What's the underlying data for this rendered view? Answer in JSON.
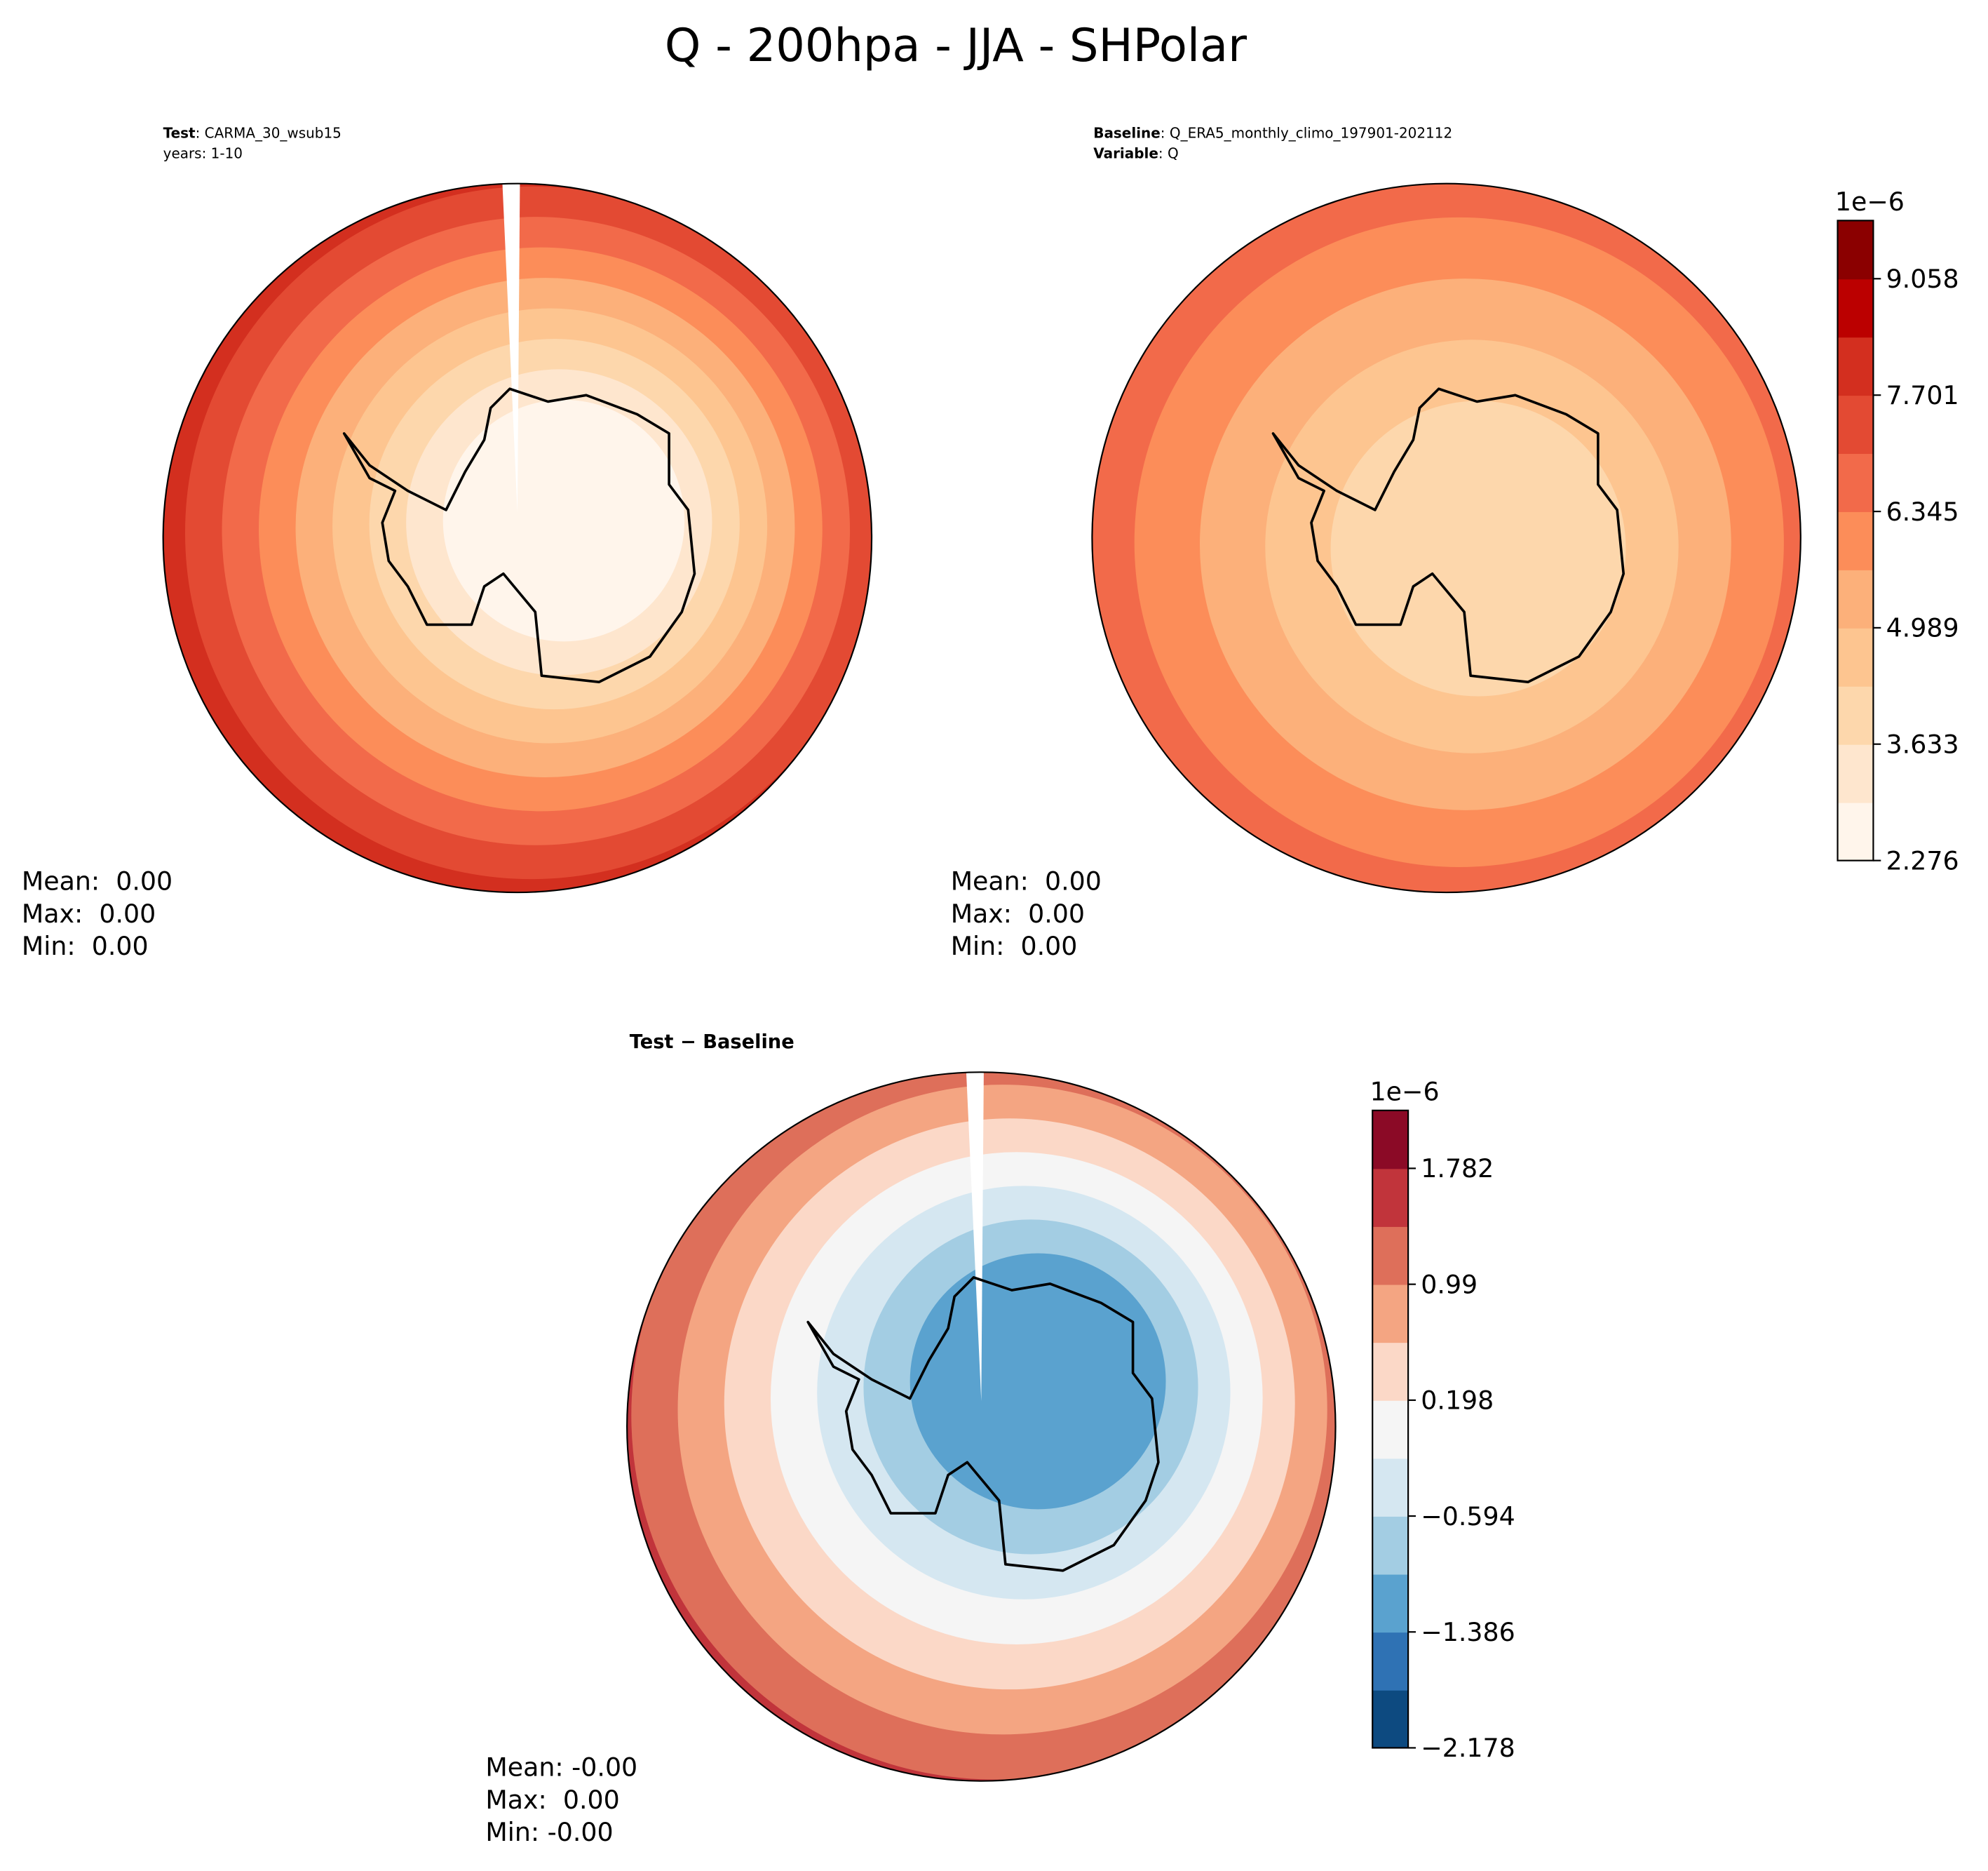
{
  "title": "Q - 200hpa - JJA - SHPolar",
  "chart_data": [
    {
      "type": "contour",
      "title": "Test",
      "title_value": ": CARMA_30_wsub15",
      "subtitle": "years: 1-10",
      "stats": [
        "Mean:  0.00",
        "Max:  0.00",
        "Min:  0.00"
      ]
    },
    {
      "type": "contour",
      "title": "Baseline",
      "title_value": ": Q_ERA5_monthly_climo_197901-202112",
      "subtitle": "Variable",
      "subtitle_value": ": Q",
      "stats": [
        "Mean:  0.00",
        "Max:  0.00",
        "Min:  0.00"
      ],
      "colorbar": {
        "offset_label": "1e−6",
        "lim": [
          2.276,
          9.736
        ],
        "ticks": [
          2.276,
          3.633,
          4.989,
          6.345,
          7.701,
          9.058
        ],
        "colors": [
          "#fff5eb",
          "#fee6ce",
          "#fdd7ac",
          "#fdc590",
          "#fcb07a",
          "#fc8d59",
          "#f26a4a",
          "#e34a33",
          "#d32f1f",
          "#bb0000",
          "#8b0000"
        ]
      }
    },
    {
      "type": "contour",
      "title": "Test − Baseline",
      "stats": [
        "Mean: -0.00",
        "Max:  0.00",
        "Min: -0.00"
      ],
      "colorbar": {
        "offset_label": "1e−6",
        "lim": [
          -2.178,
          2.178
        ],
        "ticks": [
          {
            "value": -2.178,
            "label": "−2.178"
          },
          {
            "value": -1.386,
            "label": "−1.386"
          },
          {
            "value": -0.594,
            "label": "−0.594"
          },
          0.198,
          0.99,
          1.782
        ],
        "colors": [
          "#0d4a80",
          "#2f72b4",
          "#5aa2cf",
          "#a3cde3",
          "#d5e7f1",
          "#f5f5f5",
          "#fbd8c7",
          "#f4a582",
          "#de6f5a",
          "#c1343b",
          "#8b0a26"
        ]
      }
    }
  ]
}
